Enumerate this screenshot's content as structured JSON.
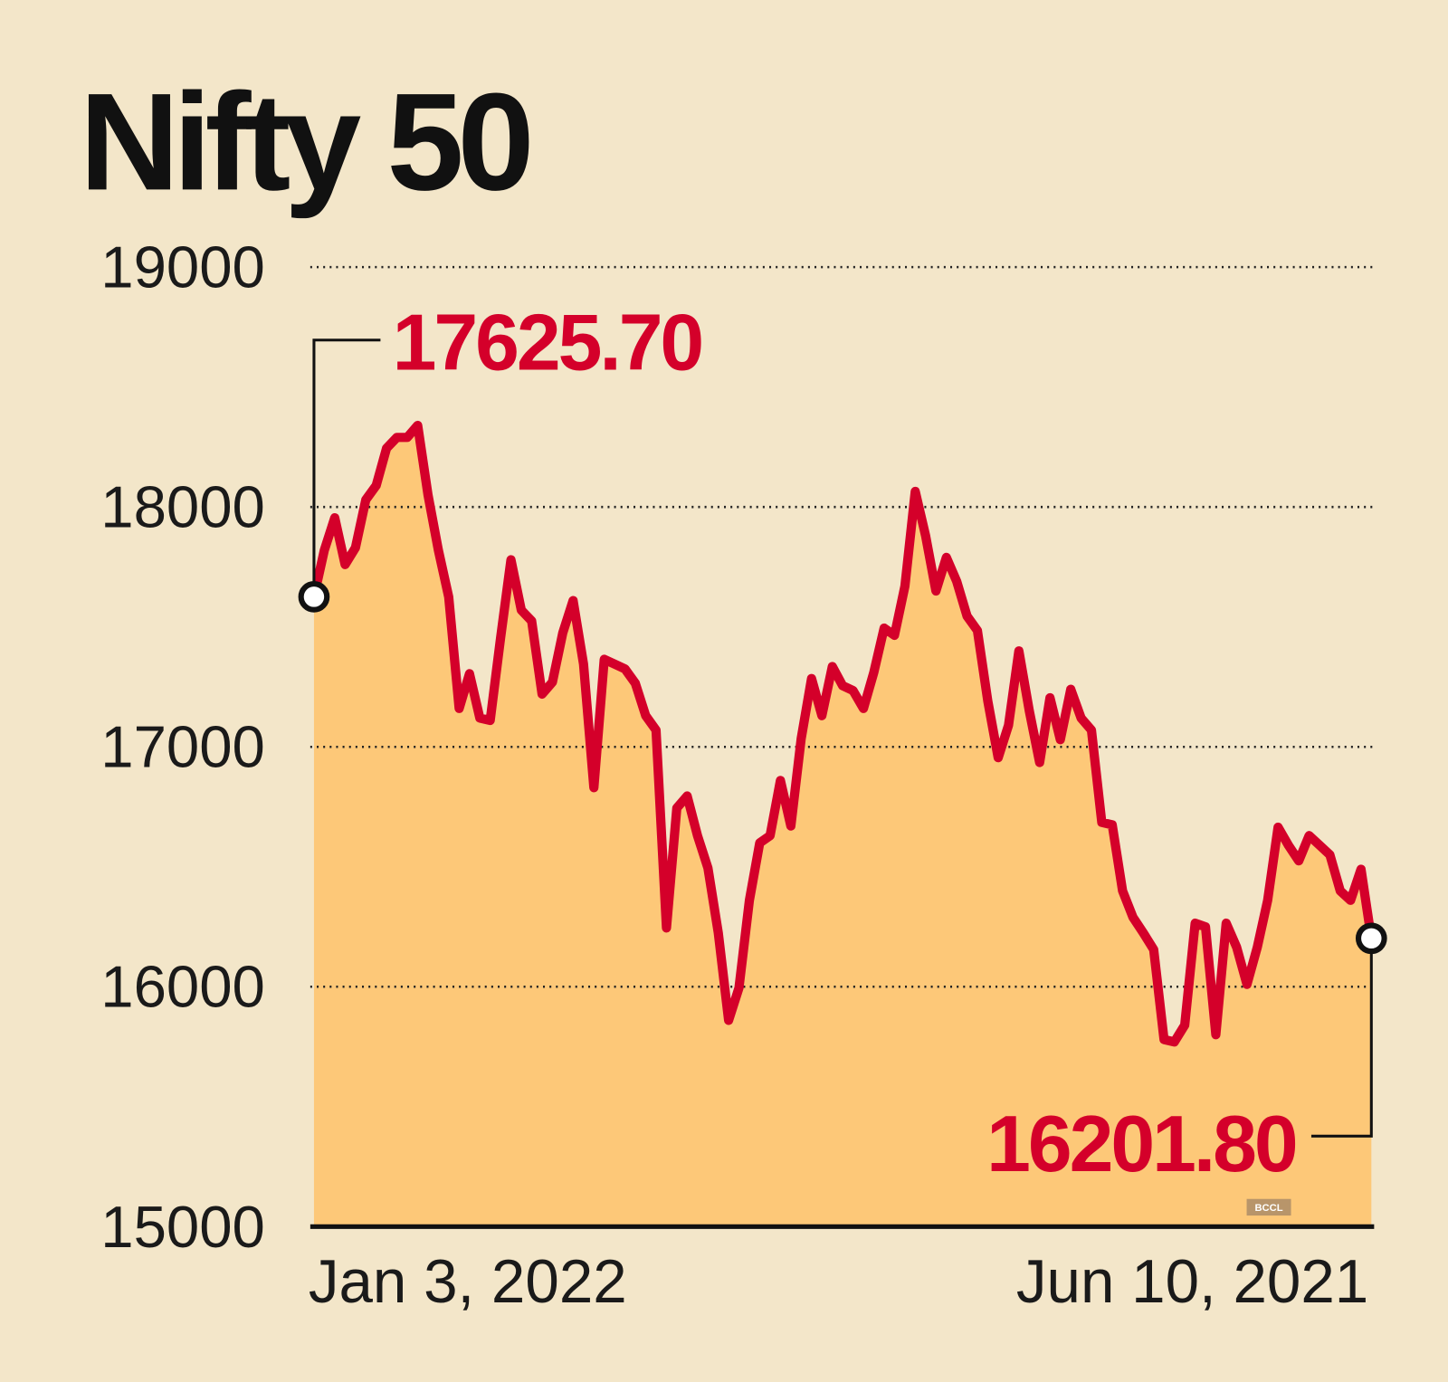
{
  "chart_data": {
    "type": "area",
    "title": "Nifty 50",
    "categories": [
      "Jan 3, 2022",
      null,
      null,
      null,
      null,
      null,
      null,
      null,
      null,
      null,
      null,
      null,
      null,
      null,
      null,
      null,
      null,
      null,
      null,
      null,
      null,
      null,
      null,
      null,
      null,
      null,
      null,
      null,
      null,
      null,
      null,
      null,
      null,
      null,
      null,
      null,
      null,
      null,
      null,
      null,
      null,
      null,
      null,
      null,
      null,
      null,
      null,
      null,
      null,
      null,
      null,
      null,
      null,
      null,
      null,
      null,
      null,
      null,
      null,
      null,
      null,
      null,
      null,
      null,
      null,
      null,
      null,
      null,
      null,
      null,
      null,
      null,
      null,
      null,
      null,
      null,
      null,
      null,
      null,
      null,
      null,
      null,
      null,
      null,
      null,
      null,
      null,
      null,
      null,
      null,
      null,
      null,
      null,
      null,
      null,
      null,
      null,
      null,
      null,
      null,
      null,
      null,
      "Jun 10, 2021"
    ],
    "values": [
      17625.7,
      17820,
      17955,
      17760,
      17830,
      18030,
      18090,
      18245,
      18290,
      18290,
      18340,
      18050,
      17820,
      17625,
      17160,
      17305,
      17120,
      17110,
      17455,
      17780,
      17570,
      17525,
      17220,
      17270,
      17475,
      17610,
      17345,
      16830,
      17365,
      17345,
      17325,
      17265,
      17130,
      17070,
      16245,
      16745,
      16795,
      16630,
      16495,
      16225,
      15860,
      15995,
      16360,
      16600,
      16630,
      16860,
      16670,
      17035,
      17285,
      17130,
      17335,
      17255,
      17235,
      17160,
      17310,
      17495,
      17465,
      17670,
      18065,
      17880,
      17650,
      17790,
      17690,
      17545,
      17485,
      17190,
      16955,
      17090,
      17400,
      17150,
      16935,
      17205,
      17030,
      17240,
      17120,
      17070,
      16685,
      16675,
      16400,
      16290,
      16225,
      16155,
      15780,
      15770,
      15840,
      16265,
      16250,
      15800,
      16265,
      16165,
      16010,
      16165,
      16360,
      16665,
      16590,
      16525,
      16630,
      16590,
      16550,
      16400,
      16360,
      16490,
      16201.8
    ],
    "value_labels": [
      "17625.70",
      null,
      null,
      null,
      null,
      null,
      null,
      null,
      null,
      null,
      null,
      null,
      null,
      null,
      null,
      null,
      null,
      null,
      null,
      null,
      null,
      null,
      null,
      null,
      null,
      null,
      null,
      null,
      null,
      null,
      null,
      null,
      null,
      null,
      null,
      null,
      null,
      null,
      null,
      null,
      null,
      null,
      null,
      null,
      null,
      null,
      null,
      null,
      null,
      null,
      null,
      null,
      null,
      null,
      null,
      null,
      null,
      null,
      null,
      null,
      null,
      null,
      null,
      null,
      null,
      null,
      null,
      null,
      null,
      null,
      null,
      null,
      null,
      null,
      null,
      null,
      null,
      null,
      null,
      null,
      null,
      null,
      null,
      null,
      null,
      null,
      null,
      null,
      null,
      null,
      null,
      null,
      null,
      null,
      null,
      null,
      null,
      null,
      null,
      null,
      null,
      null,
      "16201.80"
    ],
    "color": "#d4002a",
    "fill_color": "#fdc878",
    "ylim": [
      15000,
      19000
    ],
    "yticks": [
      15000,
      16000,
      17000,
      18000,
      19000
    ],
    "grid": true,
    "source": "BCCL"
  }
}
